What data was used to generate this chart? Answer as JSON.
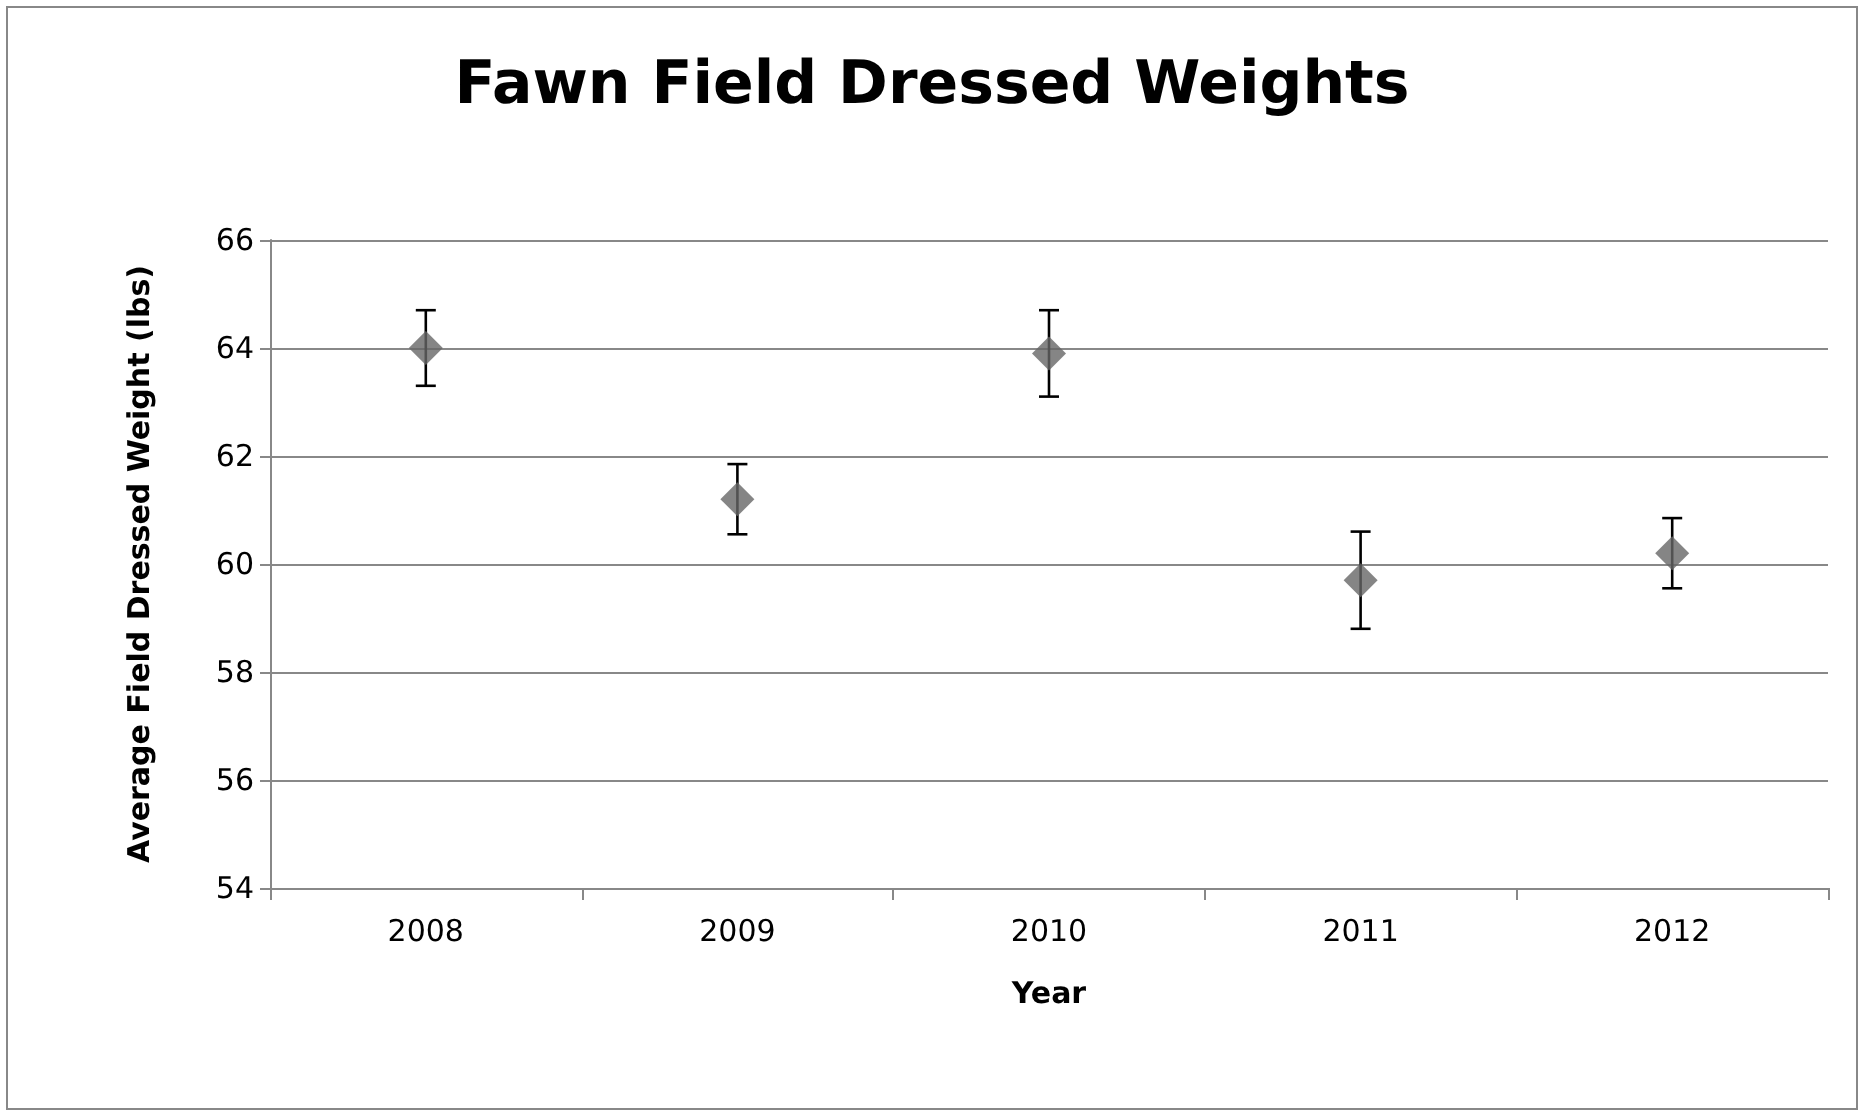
{
  "chart_data": {
    "type": "scatter",
    "title": "Fawn Field Dressed Weights",
    "xlabel": "Year",
    "ylabel": "Average Field Dressed Weight (lbs)",
    "categories": [
      "2008",
      "2009",
      "2010",
      "2011",
      "2012"
    ],
    "series": [
      {
        "color": "#666666",
        "values": [
          64.0,
          61.2,
          63.9,
          59.7,
          60.2
        ],
        "errors": [
          0.7,
          0.65,
          0.8,
          0.9,
          0.65
        ]
      }
    ],
    "ylim": [
      54,
      66
    ],
    "yticks": [
      54,
      56,
      58,
      60,
      62,
      64,
      66
    ],
    "grid": "y",
    "marker": "diamond"
  }
}
